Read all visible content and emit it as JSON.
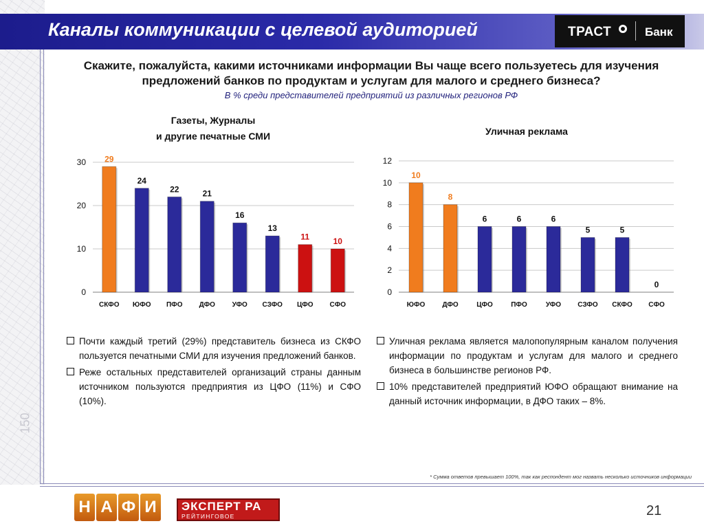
{
  "header": {
    "title": "Каналы коммуникации с целевой аудиторией",
    "logo_left": "ТРАСТ",
    "logo_right": "Банк"
  },
  "question": "Скажите, пожалуйста, какими источниками информации Вы чаще всего пользуетесь для изучения предложений банков по продуктам и услугам для малого и среднего бизнеса?",
  "subtitle": "В % среди представителей предприятий из различных регионов РФ",
  "chart_data": [
    {
      "type": "bar",
      "title_lines": [
        "Газеты, Журналы",
        "и другие печатные СМИ"
      ],
      "categories": [
        "СКФО",
        "ЮФО",
        "ПФО",
        "ДФО",
        "УФО",
        "СЗФО",
        "ЦФО",
        "СФО"
      ],
      "values": [
        29,
        24,
        22,
        21,
        16,
        13,
        11,
        10
      ],
      "colors": [
        "#f07c1e",
        "#2b2a9a",
        "#2b2a9a",
        "#2b2a9a",
        "#2b2a9a",
        "#2b2a9a",
        "#cc1111",
        "#cc1111"
      ],
      "label_colors": [
        "#f07c1e",
        "#111111",
        "#111111",
        "#111111",
        "#111111",
        "#111111",
        "#cc1111",
        "#cc1111"
      ],
      "ylim": [
        0,
        30
      ],
      "yticks": [
        0,
        10,
        20,
        30
      ],
      "grid": true
    },
    {
      "type": "bar",
      "title_lines": [
        "Уличная реклама"
      ],
      "categories": [
        "ЮФО",
        "ДФО",
        "ЦФО",
        "ПФО",
        "УФО",
        "СЗФО",
        "СКФО",
        "СФО"
      ],
      "values": [
        10,
        8,
        6,
        6,
        6,
        5,
        5,
        0
      ],
      "colors": [
        "#f07c1e",
        "#f07c1e",
        "#2b2a9a",
        "#2b2a9a",
        "#2b2a9a",
        "#2b2a9a",
        "#2b2a9a",
        "#2b2a9a"
      ],
      "label_colors": [
        "#f07c1e",
        "#f07c1e",
        "#111111",
        "#111111",
        "#111111",
        "#111111",
        "#111111",
        "#111111"
      ],
      "ylim": [
        0,
        12
      ],
      "yticks": [
        0,
        2,
        4,
        6,
        8,
        10,
        12
      ],
      "grid": true
    }
  ],
  "bullets_left": [
    "Почти каждый третий (29%) представитель бизнеса из СКФО пользуется печатными СМИ для изучения предложений банков.",
    "Реже остальных представителей организаций страны данным источником пользуются предприятия из ЦФО (11%) и СФО (10%)."
  ],
  "bullets_right": [
    "Уличная реклама является малопопулярным каналом получения информации по продуктам и услугам для малого и среднего бизнеса в большинстве регионов РФ.",
    "10% представителей предприятий ЮФО обращают внимание на данный источник информации, в ДФО таких – 8%."
  ],
  "footnote": "* Сумма ответов превышает 100%, так как респондент мог назвать несколько источников информации",
  "side_number": "150",
  "footer": {
    "nafi_letters": [
      "Н",
      "А",
      "Ф",
      "И"
    ],
    "expert_name": "ЭКСПЕРТ РА",
    "expert_sub": "РЕЙТИНГОВОЕ АГЕНТСТВО",
    "page_number": "21"
  }
}
